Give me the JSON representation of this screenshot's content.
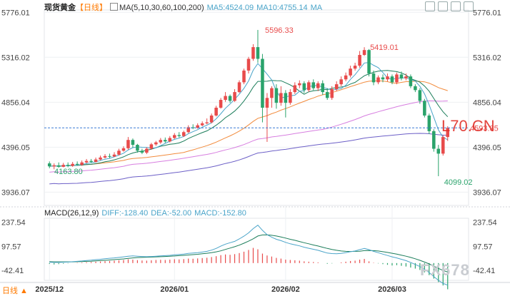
{
  "header": {
    "symbol": "现货黄金",
    "period": "【日线】",
    "ma_params": "MA(5,10,30,60,100,200)",
    "ma5": "MA5:4524.09",
    "ma10": "MA10:4755.14",
    "ma_more": "MA"
  },
  "macd_header": {
    "params": "MACD(26,12,9)",
    "diff": "DIFF:-128.40",
    "dea": "DEA:-52.00",
    "macd": "MACD:-152.80"
  },
  "period_footer": "日线 ▲",
  "watermark_overlay": "L70.CN",
  "watermark": "FX678",
  "colors": {
    "up": "#e84b4b",
    "down": "#2aa36b",
    "ma5": "#4aa4c9",
    "ma10": "#1b7d5a",
    "ma30": "#f28b3c",
    "ma60": "#d77ee0",
    "ma100": "#6c5fc7"
  },
  "chart_data": {
    "type": "candlestick",
    "y_ticks": [
      "5776.01",
      "5316.02",
      "4856.04",
      "4396.05",
      "3936.07"
    ],
    "y_range": [
      3800,
      5800
    ],
    "current_price": "4593.35",
    "x_ticks": [
      "2025/12",
      "2026/01",
      "2026/02",
      "2026/03"
    ],
    "annotations": {
      "high": "5596.33",
      "high2": "5419.01",
      "low": "4163.80",
      "low2": "4099.02"
    },
    "candles": [
      [
        4230,
        4200,
        4250,
        4180
      ],
      [
        4200,
        4210,
        4230,
        4170
      ],
      [
        4210,
        4195,
        4240,
        4185
      ],
      [
        4195,
        4215,
        4235,
        4190
      ],
      [
        4215,
        4205,
        4240,
        4190
      ],
      [
        4205,
        4225,
        4245,
        4195
      ],
      [
        4225,
        4215,
        4250,
        4205
      ],
      [
        4215,
        4240,
        4260,
        4205
      ],
      [
        4240,
        4255,
        4275,
        4230
      ],
      [
        4255,
        4245,
        4275,
        4235
      ],
      [
        4245,
        4270,
        4290,
        4240
      ],
      [
        4270,
        4290,
        4310,
        4260
      ],
      [
        4290,
        4305,
        4325,
        4280
      ],
      [
        4305,
        4300,
        4330,
        4285
      ],
      [
        4300,
        4320,
        4345,
        4295
      ],
      [
        4320,
        4360,
        4380,
        4310
      ],
      [
        4360,
        4385,
        4405,
        4350
      ],
      [
        4385,
        4470,
        4500,
        4370
      ],
      [
        4470,
        4420,
        4485,
        4390
      ],
      [
        4420,
        4360,
        4430,
        4340
      ],
      [
        4360,
        4340,
        4380,
        4325
      ],
      [
        4340,
        4380,
        4395,
        4325
      ],
      [
        4380,
        4425,
        4440,
        4370
      ],
      [
        4425,
        4445,
        4460,
        4410
      ],
      [
        4445,
        4470,
        4490,
        4430
      ],
      [
        4470,
        4455,
        4495,
        4440
      ],
      [
        4455,
        4490,
        4510,
        4445
      ],
      [
        4490,
        4520,
        4540,
        4480
      ],
      [
        4520,
        4510,
        4550,
        4495
      ],
      [
        4510,
        4550,
        4565,
        4500
      ],
      [
        4550,
        4600,
        4620,
        4540
      ],
      [
        4600,
        4595,
        4630,
        4580
      ],
      [
        4595,
        4620,
        4640,
        4585
      ],
      [
        4620,
        4640,
        4660,
        4610
      ],
      [
        4640,
        4650,
        4690,
        4630
      ],
      [
        4650,
        4720,
        4740,
        4640
      ],
      [
        4720,
        4800,
        4820,
        4710
      ],
      [
        4800,
        4880,
        4900,
        4790
      ],
      [
        4880,
        4920,
        4960,
        4860
      ],
      [
        4920,
        4870,
        4935,
        4850
      ],
      [
        4870,
        4960,
        4990,
        4860
      ],
      [
        4960,
        5060,
        5080,
        4950
      ],
      [
        5060,
        5180,
        5200,
        5040
      ],
      [
        5180,
        5300,
        5320,
        5150
      ],
      [
        5300,
        5420,
        5450,
        5280
      ],
      [
        5420,
        5300,
        5596,
        5260
      ],
      [
        5300,
        4800,
        5350,
        4650
      ],
      [
        4800,
        4900,
        4950,
        4450
      ],
      [
        4900,
        5000,
        5020,
        4800
      ],
      [
        5000,
        4850,
        5040,
        4790
      ],
      [
        4850,
        4950,
        5020,
        4820
      ],
      [
        4950,
        4850,
        4980,
        4700
      ],
      [
        4850,
        4960,
        4990,
        4830
      ],
      [
        4960,
        5030,
        5060,
        4940
      ],
      [
        5030,
        5050,
        5080,
        5000
      ],
      [
        5050,
        4980,
        5070,
        4950
      ],
      [
        4980,
        5060,
        5080,
        4960
      ],
      [
        5060,
        5000,
        5090,
        4980
      ],
      [
        5000,
        5050,
        5070,
        4970
      ],
      [
        5050,
        4960,
        5080,
        4930
      ],
      [
        4960,
        4900,
        5000,
        4880
      ],
      [
        4900,
        4990,
        5020,
        4880
      ],
      [
        4990,
        5040,
        5070,
        4970
      ],
      [
        5040,
        5090,
        5120,
        5020
      ],
      [
        5090,
        5130,
        5160,
        5070
      ],
      [
        5130,
        5200,
        5230,
        5110
      ],
      [
        5200,
        5230,
        5260,
        5180
      ],
      [
        5230,
        5340,
        5380,
        5210
      ],
      [
        5340,
        5390,
        5419,
        5330
      ],
      [
        5390,
        5150,
        5400,
        5120
      ],
      [
        5150,
        5060,
        5180,
        5030
      ],
      [
        5060,
        5110,
        5130,
        5040
      ],
      [
        5110,
        5090,
        5140,
        5060
      ],
      [
        5090,
        5120,
        5150,
        5070
      ],
      [
        5120,
        5060,
        5140,
        5040
      ],
      [
        5060,
        5140,
        5160,
        5040
      ],
      [
        5140,
        5100,
        5170,
        5080
      ],
      [
        5100,
        5120,
        5150,
        5080
      ],
      [
        5120,
        5020,
        5140,
        5000
      ],
      [
        5020,
        4980,
        5040,
        4960
      ],
      [
        4980,
        4870,
        5000,
        4840
      ],
      [
        4870,
        4720,
        4890,
        4700
      ],
      [
        4720,
        4560,
        4740,
        4530
      ],
      [
        4560,
        4380,
        4580,
        4350
      ],
      [
        4380,
        4330,
        4420,
        4099
      ],
      [
        4330,
        4500,
        4520,
        4310
      ],
      [
        4500,
        4593,
        4610,
        4460
      ]
    ],
    "macd_y_ticks": [
      "237.54",
      "97.57",
      "-42.41"
    ],
    "macd_range": [
      -100,
      260
    ],
    "macd_hist": [
      -5,
      -8,
      -6,
      -4,
      -2,
      0,
      2,
      3,
      5,
      6,
      8,
      9,
      11,
      12,
      14,
      16,
      18,
      22,
      20,
      17,
      15,
      14,
      16,
      18,
      19,
      18,
      20,
      22,
      21,
      23,
      26,
      25,
      27,
      29,
      31,
      35,
      40,
      46,
      50,
      48,
      52,
      58,
      66,
      76,
      88,
      80,
      55,
      44,
      38,
      30,
      26,
      20,
      18,
      16,
      14,
      10,
      8,
      6,
      4,
      0,
      -4,
      -2,
      0,
      4,
      8,
      12,
      14,
      20,
      24,
      10,
      2,
      -2,
      -6,
      -10,
      -14,
      -12,
      -16,
      -20,
      -26,
      -32,
      -40,
      -54,
      -70,
      -90,
      -110,
      -130,
      -152
    ],
    "macd_diff": [
      5,
      4,
      4,
      5,
      6,
      8,
      10,
      12,
      15,
      17,
      20,
      22,
      25,
      28,
      30,
      33,
      36,
      40,
      42,
      40,
      38,
      37,
      38,
      40,
      42,
      43,
      45,
      48,
      50,
      52,
      56,
      58,
      60,
      64,
      68,
      75,
      85,
      98,
      110,
      118,
      126,
      140,
      156,
      175,
      200,
      220,
      190,
      165,
      150,
      138,
      130,
      120,
      112,
      106,
      100,
      92,
      86,
      80,
      74,
      66,
      58,
      55,
      54,
      56,
      60,
      66,
      70,
      78,
      85,
      78,
      68,
      60,
      52,
      44,
      36,
      30,
      22,
      14,
      4,
      -8,
      -20,
      -36,
      -55,
      -78,
      -100,
      -118,
      -128
    ],
    "macd_dea": [
      8,
      7,
      7,
      7,
      7,
      7,
      8,
      9,
      10,
      11,
      13,
      14,
      16,
      18,
      20,
      22,
      24,
      27,
      30,
      32,
      33,
      34,
      35,
      36,
      37,
      38,
      40,
      41,
      43,
      45,
      47,
      49,
      51,
      54,
      57,
      60,
      65,
      71,
      79,
      87,
      95,
      104,
      115,
      127,
      141,
      157,
      163,
      164,
      161,
      157,
      151,
      145,
      138,
      132,
      125,
      118,
      112,
      105,
      99,
      92,
      85,
      79,
      74,
      70,
      68,
      67,
      68,
      69,
      72,
      73,
      72,
      70,
      66,
      62,
      57,
      52,
      46,
      40,
      33,
      25,
      16,
      6,
      -5,
      -18,
      -31,
      -43,
      -52
    ]
  }
}
